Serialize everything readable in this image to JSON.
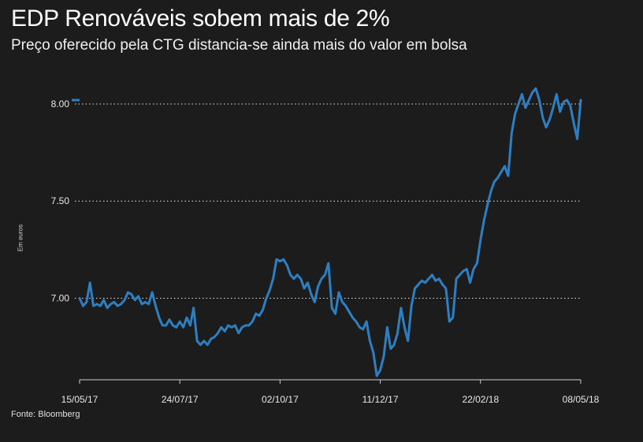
{
  "title": "EDP Renováveis sobem mais de 2%",
  "subtitle": "Preço oferecido pela CTG distancia-se ainda mais do valor em bolsa",
  "source": "Fonte: Bloomberg",
  "colors": {
    "background": "#1c1c1c",
    "line": "#2e7fc1",
    "grid": "#ffffff",
    "text": "#ffffff"
  },
  "chart_data": {
    "type": "line",
    "ylabel": "Em euros",
    "xlabel": "",
    "ylim": [
      6.58,
      8.15
    ],
    "grid": "horizontal dotted",
    "x_ticks": [
      "15/05/17",
      "24/07/17",
      "02/10/17",
      "11/12/17",
      "22/02/18",
      "08/05/18"
    ],
    "y_ticks": [
      {
        "value": 7.0,
        "label": "7.00"
      },
      {
        "value": 7.5,
        "label": "7.50"
      },
      {
        "value": 8.0,
        "label": "8.00"
      }
    ],
    "last_value_marker": 8.02,
    "series": [
      {
        "name": "",
        "x_range": [
          "15/05/17",
          "08/05/18"
        ],
        "values": [
          7.0,
          6.96,
          6.98,
          7.08,
          6.96,
          6.97,
          6.96,
          6.99,
          6.95,
          6.97,
          6.98,
          6.96,
          6.97,
          6.99,
          7.03,
          7.02,
          6.99,
          7.01,
          6.97,
          6.98,
          6.97,
          7.03,
          6.96,
          6.9,
          6.86,
          6.86,
          6.89,
          6.86,
          6.85,
          6.88,
          6.85,
          6.9,
          6.86,
          6.95,
          6.78,
          6.76,
          6.78,
          6.76,
          6.79,
          6.8,
          6.82,
          6.85,
          6.83,
          6.86,
          6.85,
          6.86,
          6.82,
          6.85,
          6.86,
          6.86,
          6.88,
          6.92,
          6.91,
          6.94,
          7.0,
          7.04,
          7.1,
          7.2,
          7.19,
          7.2,
          7.17,
          7.12,
          7.1,
          7.12,
          7.1,
          7.05,
          7.08,
          7.02,
          6.98,
          7.06,
          7.1,
          7.12,
          7.18,
          6.95,
          6.92,
          7.03,
          6.98,
          6.96,
          6.93,
          6.9,
          6.88,
          6.85,
          6.84,
          6.88,
          6.78,
          6.72,
          6.6,
          6.63,
          6.7,
          6.85,
          6.74,
          6.76,
          6.82,
          6.95,
          6.85,
          6.78,
          6.96,
          7.05,
          7.07,
          7.09,
          7.08,
          7.1,
          7.12,
          7.09,
          7.1,
          7.07,
          7.05,
          6.88,
          6.9,
          7.1,
          7.12,
          7.14,
          7.15,
          7.08,
          7.15,
          7.18,
          7.3,
          7.4,
          7.48,
          7.55,
          7.6,
          7.62,
          7.65,
          7.68,
          7.63,
          7.85,
          7.95,
          8.0,
          8.05,
          7.98,
          8.02,
          8.06,
          8.08,
          8.02,
          7.93,
          7.88,
          7.92,
          7.98,
          8.05,
          7.96,
          8.01,
          8.02,
          7.99,
          7.9,
          7.82,
          8.02
        ]
      }
    ]
  }
}
